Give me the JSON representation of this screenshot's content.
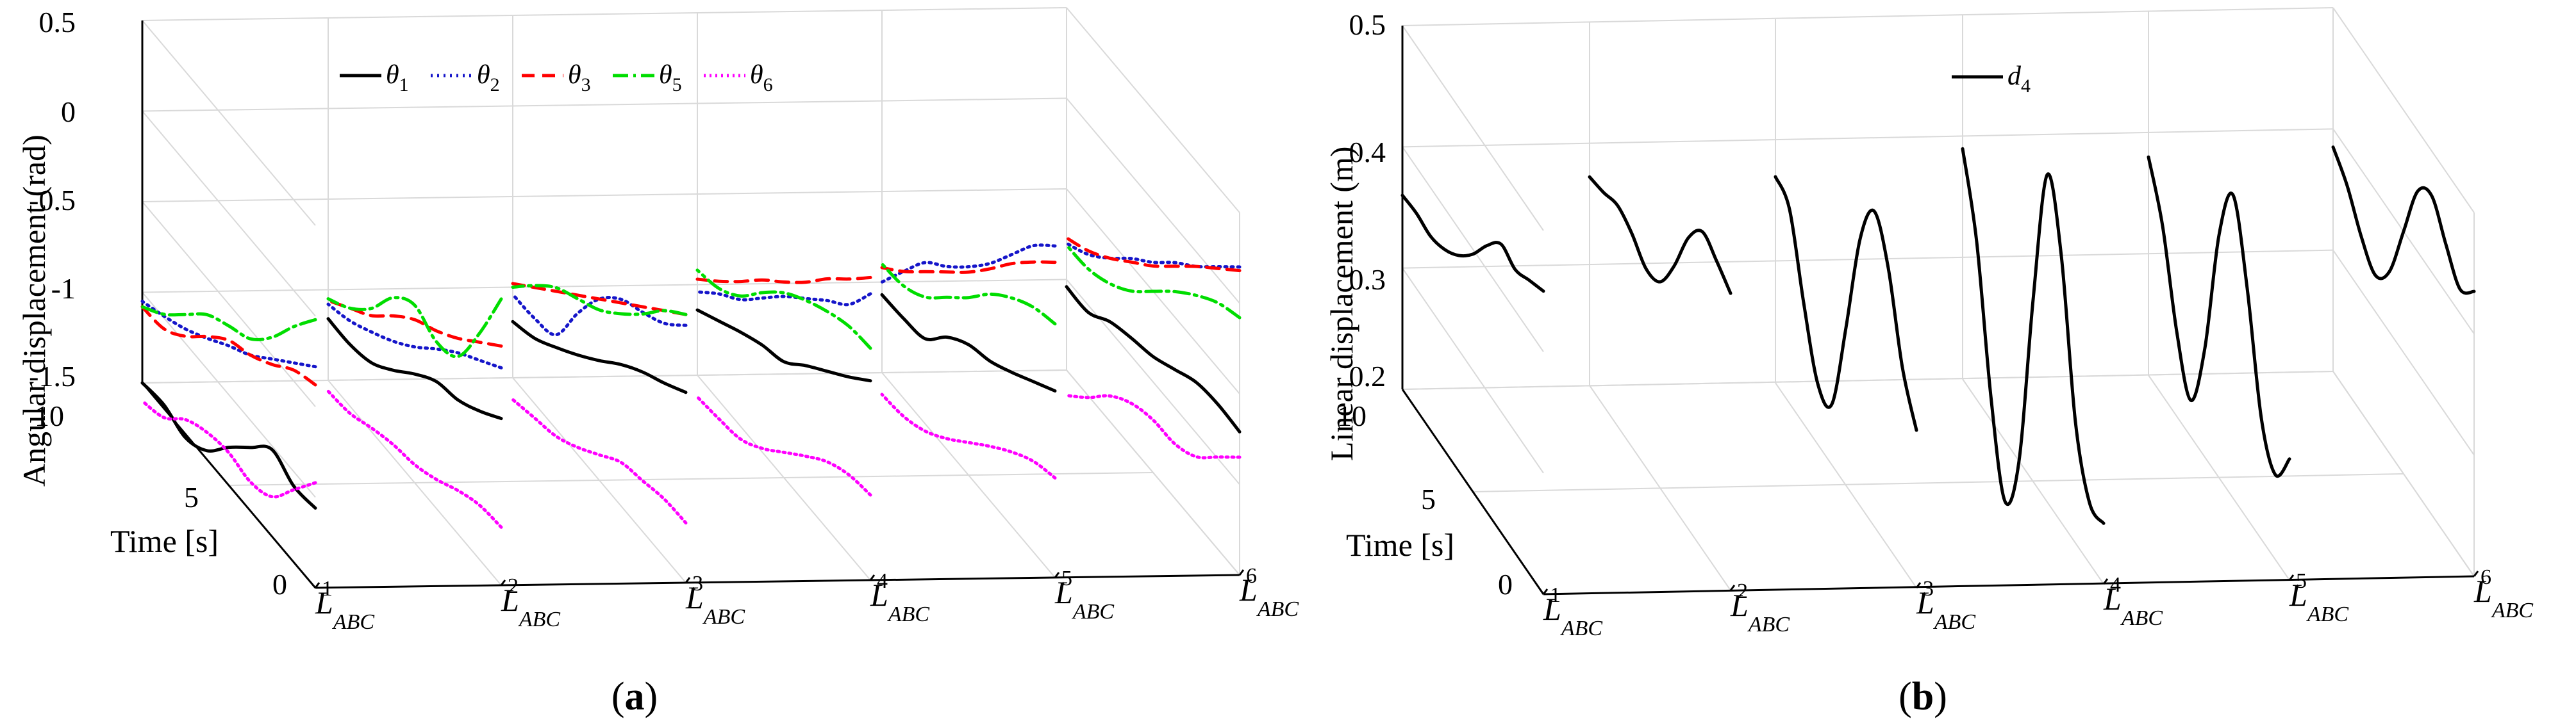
{
  "chart_data": [
    {
      "panel": "a",
      "panel_label": "(a)",
      "type": "line",
      "subtype": "3d-waterfall",
      "title": "",
      "zlabel": "Angular displacement (rad)",
      "ylabel": "Time [s]",
      "zlim": [
        -1.5,
        0.5
      ],
      "z_ticks": [
        "0.5",
        "0",
        "-0.5",
        "-1",
        "-1.5"
      ],
      "z_tick_values": [
        0.5,
        0,
        -0.5,
        -1,
        -1.5
      ],
      "ylim": [
        0,
        10
      ],
      "y_ticks": [
        "10",
        "5",
        "0"
      ],
      "y_tick_values": [
        10,
        5,
        0
      ],
      "categories": [
        {
          "base": "L",
          "sub": "ABC",
          "sup": "1"
        },
        {
          "base": "L",
          "sub": "ABC",
          "sup": "2"
        },
        {
          "base": "L",
          "sub": "ABC",
          "sup": "3"
        },
        {
          "base": "L",
          "sub": "ABC",
          "sup": "4"
        },
        {
          "base": "L",
          "sub": "ABC",
          "sup": "5"
        },
        {
          "base": "L",
          "sub": "ABC",
          "sup": "6"
        }
      ],
      "t_samples": [
        0,
        1.25,
        2.5,
        3.75,
        5,
        6.25,
        7.5,
        8.75,
        10
      ],
      "series": [
        {
          "name": "theta1",
          "label": {
            "base": "θ",
            "sub": "1"
          },
          "color": "#000000",
          "dash": "",
          "values": [
            [
              -1.06,
              -1.08,
              -1.02,
              -1.15,
              -1.29,
              -1.45,
              -1.52,
              -1.48,
              -1.5
            ],
            [
              -0.58,
              -0.68,
              -0.76,
              -0.8,
              -0.9,
              -1.02,
              -1.12,
              -1.16,
              -1.16
            ],
            [
              -0.45,
              -0.54,
              -0.62,
              -0.72,
              -0.84,
              -0.95,
              -1.05,
              -1.14,
              -1.19
            ],
            [
              -0.4,
              -0.52,
              -0.63,
              -0.74,
              -0.86,
              -0.91,
              -0.98,
              -1.06,
              -1.14
            ],
            [
              -0.47,
              -0.56,
              -0.65,
              -0.73,
              -0.78,
              -0.88,
              -1.03,
              -1.06,
              -1.07
            ],
            [
              -0.71,
              -0.7,
              -0.72,
              -0.79,
              -0.86,
              -0.9,
              -0.95,
              -1.04,
              -1.04
            ]
          ]
        },
        {
          "name": "theta2",
          "label": {
            "base": "θ",
            "sub": "2"
          },
          "color": "#1515c9",
          "dash": "3,7",
          "values": [
            [
              -0.28,
              -0.4,
              -0.52,
              -0.64,
              -0.73,
              -0.83,
              -0.92,
              -0.99,
              -1.05
            ],
            [
              -0.3,
              -0.4,
              -0.5,
              -0.62,
              -0.75,
              -0.86,
              -0.95,
              -1.03,
              -1.08
            ],
            [
              -0.08,
              -0.21,
              -0.29,
              -0.36,
              -0.5,
              -0.72,
              -0.98,
              -1.03,
              -1.04
            ],
            [
              0.08,
              -0.12,
              -0.24,
              -0.37,
              -0.5,
              -0.65,
              -0.8,
              -0.91,
              -1.04
            ],
            [
              0.33,
              0.19,
              0.0,
              -0.19,
              -0.35,
              -0.49,
              -0.61,
              -0.8,
              -1.0
            ],
            [
              0.2,
              0.06,
              -0.08,
              -0.2,
              -0.34,
              -0.46,
              -0.6,
              -0.72,
              -0.8
            ]
          ]
        },
        {
          "name": "theta3",
          "label": {
            "base": "θ",
            "sub": "3"
          },
          "color": "#ff0000",
          "dash": "20,12",
          "values": [
            [
              -0.38,
              -0.44,
              -0.55,
              -0.64,
              -0.7,
              -0.82,
              -0.96,
              -1.06,
              -1.08
            ],
            [
              -0.18,
              -0.3,
              -0.42,
              -0.52,
              -0.6,
              -0.72,
              -0.86,
              -0.96,
              -1.06
            ],
            [
              -0.02,
              -0.14,
              -0.26,
              -0.38,
              -0.5,
              -0.62,
              -0.74,
              -0.86,
              -0.98
            ],
            [
              0.17,
              0.02,
              -0.12,
              -0.28,
              -0.42,
              -0.55,
              -0.7,
              -0.84,
              -0.97
            ],
            [
              0.24,
              0.1,
              -0.05,
              -0.22,
              -0.38,
              -0.52,
              -0.66,
              -0.8,
              -0.92
            ],
            [
              0.18,
              0.05,
              -0.08,
              -0.22,
              -0.36,
              -0.48,
              -0.6,
              -0.7,
              -0.77
            ]
          ]
        },
        {
          "name": "theta5",
          "label": {
            "base": "θ",
            "sub": "5"
          },
          "color": "#00dd00",
          "dash": "24,8,4,8",
          "values": [
            [
              -0.02,
              -0.2,
              -0.4,
              -0.55,
              -0.62,
              -0.7,
              -0.84,
              -0.98,
              -1.08
            ],
            [
              0.08,
              -0.25,
              -0.52,
              -0.58,
              -0.52,
              -0.62,
              -0.82,
              -0.96,
              -1.05
            ],
            [
              -0.02,
              -0.14,
              -0.3,
              -0.44,
              -0.56,
              -0.64,
              -0.72,
              -0.85,
              -1.0
            ],
            [
              -0.22,
              -0.24,
              -0.3,
              -0.38,
              -0.48,
              -0.62,
              -0.78,
              -0.88,
              -0.92
            ],
            [
              -0.1,
              -0.15,
              -0.24,
              -0.36,
              -0.52,
              -0.66,
              -0.8,
              -0.88,
              -0.9
            ],
            [
              -0.08,
              -0.14,
              -0.24,
              -0.36,
              -0.5,
              -0.64,
              -0.74,
              -0.8,
              -0.81
            ]
          ]
        },
        {
          "name": "theta6",
          "label": {
            "base": "θ",
            "sub": "6"
          },
          "color": "#ff00ff",
          "dash": "3,6",
          "values": [
            [
              -0.92,
              -1.1,
              -1.28,
              -1.34,
              -1.32,
              -1.35,
              -1.42,
              -1.55,
              -1.6
            ],
            [
              -1.18,
              -1.2,
              -1.26,
              -1.34,
              -1.4,
              -1.43,
              -1.48,
              -1.54,
              -1.56
            ],
            [
              -1.17,
              -1.18,
              -1.22,
              -1.26,
              -1.36,
              -1.46,
              -1.54,
              -1.58,
              -1.62
            ],
            [
              -1.03,
              -1.06,
              -1.13,
              -1.24,
              -1.36,
              -1.48,
              -1.57,
              -1.6,
              -1.62
            ],
            [
              -0.95,
              -1.0,
              -1.09,
              -1.2,
              -1.32,
              -1.44,
              -1.54,
              -1.6,
              -1.62
            ],
            [
              -0.85,
              -0.99,
              -1.13,
              -1.2,
              -1.21,
              -1.26,
              -1.36,
              -1.51,
              -1.64
            ]
          ]
        }
      ]
    },
    {
      "panel": "b",
      "panel_label": "(b)",
      "type": "line",
      "subtype": "3d-waterfall",
      "title": "",
      "zlabel": "Linear displacement (m)",
      "ylabel": "Time [s]",
      "zlim": [
        0.2,
        0.5
      ],
      "z_ticks": [
        "0.5",
        "0.4",
        "0.3",
        "0.2"
      ],
      "z_tick_values": [
        0.5,
        0.4,
        0.3,
        0.2
      ],
      "ylim": [
        0,
        10
      ],
      "y_ticks": [
        "10",
        "5",
        "0"
      ],
      "y_tick_values": [
        10,
        5,
        0
      ],
      "categories": [
        {
          "base": "L",
          "sub": "ABC",
          "sup": "1"
        },
        {
          "base": "L",
          "sub": "ABC",
          "sup": "2"
        },
        {
          "base": "L",
          "sub": "ABC",
          "sup": "3"
        },
        {
          "base": "L",
          "sub": "ABC",
          "sup": "4"
        },
        {
          "base": "L",
          "sub": "ABC",
          "sup": "5"
        },
        {
          "base": "L",
          "sub": "ABC",
          "sup": "6"
        }
      ],
      "t_samples": [
        0,
        1,
        2,
        3,
        4,
        5,
        6,
        7,
        8,
        9,
        10
      ],
      "series": [
        {
          "name": "d4",
          "label": {
            "base": "d",
            "sub": "4"
          },
          "color": "#000000",
          "dash": "",
          "values": [
            [
              0.45,
              0.442,
              0.434,
              0.438,
              0.42,
              0.396,
              0.378,
              0.366,
              0.36,
              0.362,
              0.36
            ],
            [
              0.445,
              0.455,
              0.462,
              0.44,
              0.4,
              0.37,
              0.364,
              0.376,
              0.382,
              0.376,
              0.372
            ],
            [
              0.33,
              0.365,
              0.43,
              0.46,
              0.42,
              0.33,
              0.25,
              0.25,
              0.3,
              0.36,
              0.37
            ],
            [
              0.25,
              0.25,
              0.3,
              0.42,
              0.47,
              0.35,
              0.2,
              0.15,
              0.22,
              0.33,
              0.39
            ],
            [
              0.3,
              0.27,
              0.3,
              0.39,
              0.45,
              0.4,
              0.29,
              0.23,
              0.27,
              0.34,
              0.38
            ],
            [
              0.435,
              0.42,
              0.44,
              0.463,
              0.45,
              0.4,
              0.35,
              0.33,
              0.345,
              0.37,
              0.385
            ]
          ]
        }
      ]
    }
  ]
}
